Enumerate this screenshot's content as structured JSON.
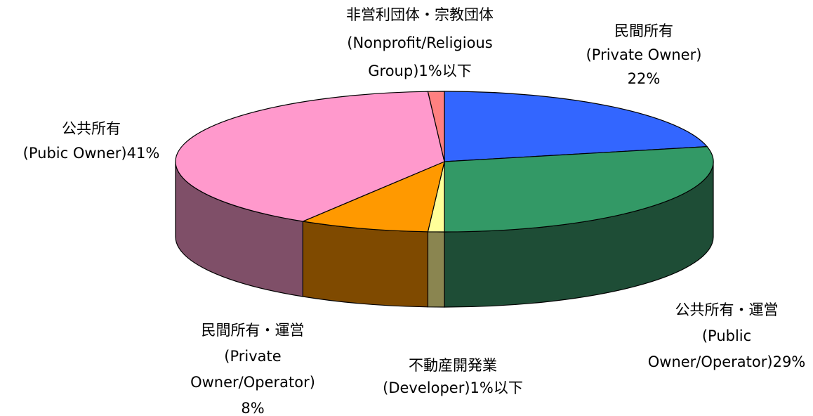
{
  "chart_data": {
    "type": "pie3d",
    "categories": [
      "民間所有",
      "公共所有・運営",
      "不動産開発業",
      "民間所有・運営",
      "公共所有",
      "非営利団体・宗教団体"
    ],
    "english": [
      [
        "(Private Owner)"
      ],
      [
        "(Public",
        "Owner/Operator)"
      ],
      [
        "(Developer)"
      ],
      [
        "(Private",
        "Owner/Operator)"
      ],
      [
        "(Pubic Owner)"
      ],
      [
        "(Nonprofit/Religious",
        "Group)"
      ]
    ],
    "values": [
      22,
      29,
      1,
      8,
      41,
      1
    ],
    "value_labels": [
      "22%",
      "29%",
      "1%以下",
      "8%",
      "41%",
      "1%以下"
    ],
    "colors": [
      "#3366ff",
      "#339966",
      "#ffff99",
      "#ff9900",
      "#ff99cc",
      "#ff8080"
    ],
    "side_colors": [
      "#1f3d99",
      "#1e4d36",
      "#8a8550",
      "#7f4a00",
      "#7f4f68",
      "#994d4d"
    ]
  }
}
